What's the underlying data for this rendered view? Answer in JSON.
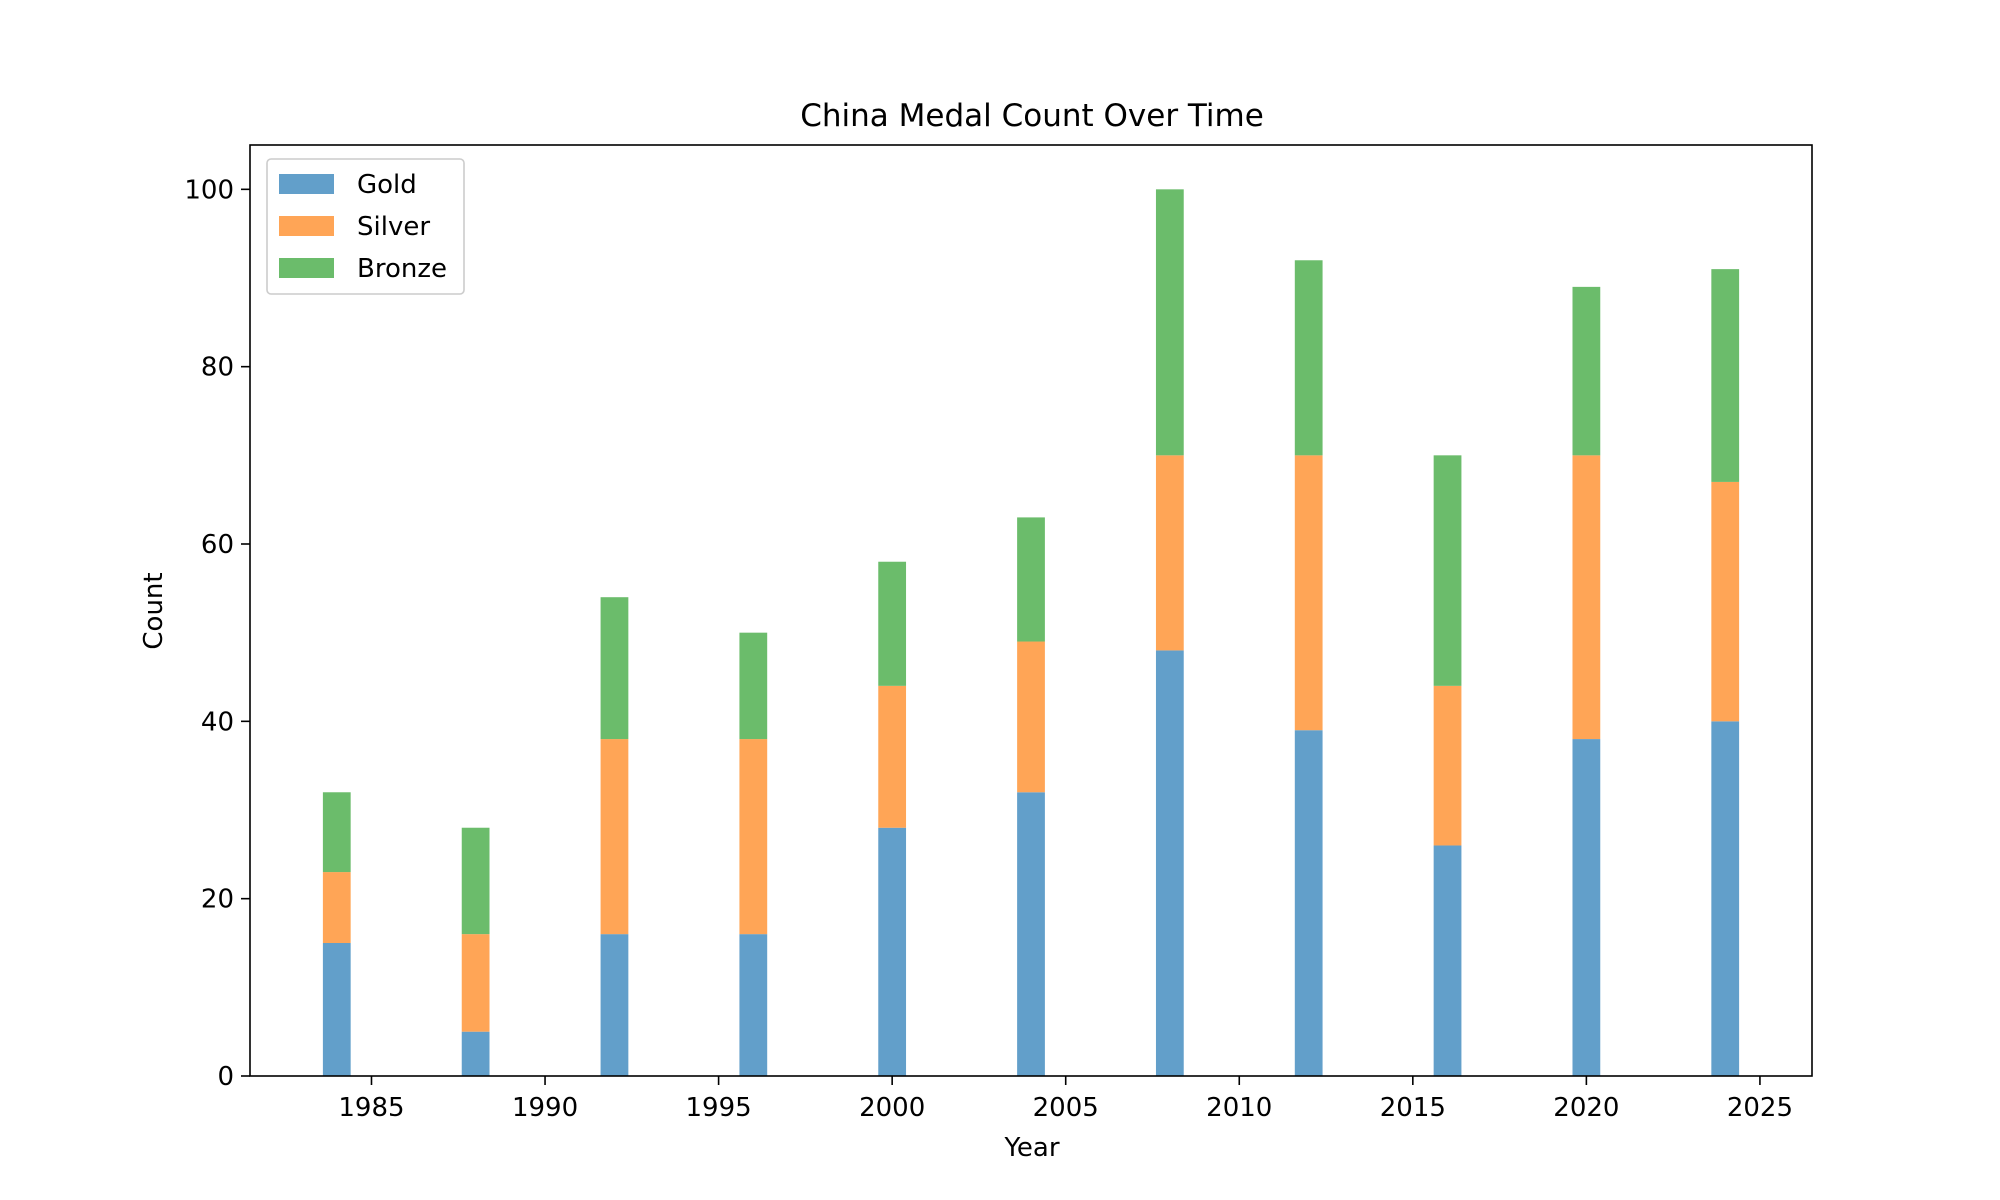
{
  "chart_data": {
    "type": "bar",
    "stacked": true,
    "title": "China Medal Count Over Time",
    "xlabel": "Year",
    "ylabel": "Count",
    "x": [
      1984,
      1988,
      1992,
      1996,
      2000,
      2004,
      2008,
      2012,
      2016,
      2020,
      2024
    ],
    "xlim": [
      1981.5,
      2026.5
    ],
    "ylim": [
      0,
      105
    ],
    "xticks": [
      1985,
      1990,
      1995,
      2000,
      2005,
      2010,
      2015,
      2020,
      2025
    ],
    "yticks": [
      0,
      20,
      40,
      60,
      80,
      100
    ],
    "bar_width_years": 0.8,
    "grid": false,
    "legend_position": "top-left",
    "series": [
      {
        "name": "Gold",
        "color": "#629fca",
        "values": [
          15,
          5,
          16,
          16,
          28,
          32,
          48,
          39,
          26,
          38,
          40
        ]
      },
      {
        "name": "Silver",
        "color": "#ffa556",
        "values": [
          8,
          11,
          22,
          22,
          16,
          17,
          22,
          31,
          18,
          32,
          27
        ]
      },
      {
        "name": "Bronze",
        "color": "#6bbc6b",
        "values": [
          9,
          12,
          16,
          12,
          14,
          14,
          30,
          22,
          26,
          19,
          24
        ]
      }
    ]
  }
}
